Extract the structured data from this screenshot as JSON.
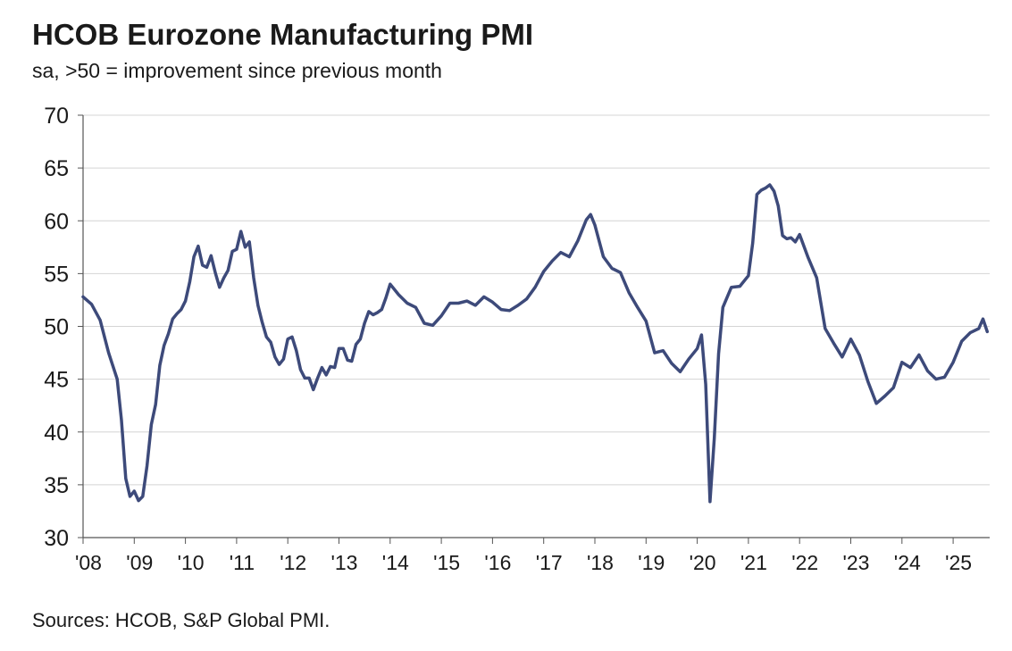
{
  "title": "HCOB Eurozone Manufacturing PMI",
  "subtitle": "sa, >50 = improvement since previous month",
  "source": "Sources: HCOB, S&P Global PMI.",
  "chart_data": {
    "type": "line",
    "title": "HCOB Eurozone Manufacturing PMI",
    "subtitle": "sa, >50 = improvement since previous month",
    "ylim": [
      30,
      70
    ],
    "yticks": [
      30,
      35,
      40,
      45,
      50,
      55,
      60,
      65,
      70
    ],
    "xlim": [
      "2008-01",
      "2025-09"
    ],
    "xtick_labels": [
      "'08",
      "'09",
      "'10",
      "'11",
      "'12",
      "'13",
      "'14",
      "'15",
      "'16",
      "'17",
      "'18",
      "'19",
      "'20",
      "'21",
      "'22",
      "'23",
      "'24",
      "'25"
    ],
    "xtick_years": [
      2008,
      2009,
      2010,
      2011,
      2012,
      2013,
      2014,
      2015,
      2016,
      2017,
      2018,
      2019,
      2020,
      2021,
      2022,
      2023,
      2024,
      2025
    ],
    "grid": "horizontal",
    "line_color": "#3d4a7a",
    "series": [
      {
        "x": [
          "2008-01",
          "2008-03",
          "2008-05",
          "2008-07",
          "2008-09",
          "2008-10",
          "2008-11",
          "2008-12",
          "2009-01",
          "2009-02",
          "2009-03",
          "2009-04",
          "2009-05",
          "2009-06",
          "2009-07",
          "2009-08",
          "2009-09",
          "2009-10",
          "2009-11",
          "2009-12",
          "2010-01",
          "2010-02",
          "2010-03",
          "2010-04",
          "2010-05",
          "2010-06",
          "2010-07",
          "2010-08",
          "2010-09",
          "2010-10",
          "2010-11",
          "2010-12",
          "2011-01",
          "2011-02",
          "2011-03",
          "2011-04",
          "2011-05",
          "2011-06",
          "2011-07",
          "2011-08",
          "2011-09",
          "2011-10",
          "2011-11",
          "2011-12",
          "2012-01",
          "2012-02",
          "2012-03",
          "2012-04",
          "2012-05",
          "2012-06",
          "2012-07",
          "2012-08",
          "2012-09",
          "2012-10",
          "2012-11",
          "2012-12",
          "2013-01",
          "2013-02",
          "2013-03",
          "2013-04",
          "2013-05",
          "2013-06",
          "2013-07",
          "2013-08",
          "2013-09",
          "2013-10",
          "2013-11",
          "2013-12",
          "2014-01",
          "2014-03",
          "2014-05",
          "2014-07",
          "2014-09",
          "2014-11",
          "2015-01",
          "2015-03",
          "2015-05",
          "2015-07",
          "2015-09",
          "2015-11",
          "2016-01",
          "2016-03",
          "2016-05",
          "2016-07",
          "2016-09",
          "2016-11",
          "2017-01",
          "2017-03",
          "2017-05",
          "2017-07",
          "2017-09",
          "2017-11",
          "2017-12",
          "2018-01",
          "2018-03",
          "2018-05",
          "2018-07",
          "2018-09",
          "2018-11",
          "2019-01",
          "2019-03",
          "2019-05",
          "2019-07",
          "2019-09",
          "2019-11",
          "2020-01",
          "2020-02",
          "2020-03",
          "2020-04",
          "2020-05",
          "2020-06",
          "2020-07",
          "2020-09",
          "2020-11",
          "2021-01",
          "2021-02",
          "2021-03",
          "2021-04",
          "2021-05",
          "2021-06",
          "2021-07",
          "2021-08",
          "2021-09",
          "2021-10",
          "2021-11",
          "2021-12",
          "2022-01",
          "2022-03",
          "2022-05",
          "2022-07",
          "2022-09",
          "2022-11",
          "2023-01",
          "2023-03",
          "2023-05",
          "2023-07",
          "2023-09",
          "2023-11",
          "2024-01",
          "2024-03",
          "2024-05",
          "2024-07",
          "2024-09",
          "2024-11",
          "2025-01",
          "2025-03",
          "2025-05",
          "2025-07",
          "2025-08",
          "2025-09"
        ],
        "y": [
          52.8,
          52.1,
          50.6,
          47.5,
          45.0,
          41.1,
          35.6,
          33.9,
          34.4,
          33.5,
          33.9,
          36.8,
          40.7,
          42.6,
          46.3,
          48.2,
          49.3,
          50.7,
          51.2,
          51.6,
          52.4,
          54.2,
          56.6,
          57.6,
          55.8,
          55.6,
          56.7,
          55.1,
          53.7,
          54.6,
          55.3,
          57.1,
          57.3,
          59.0,
          57.5,
          58.0,
          54.6,
          52.0,
          50.4,
          49.0,
          48.5,
          47.1,
          46.4,
          46.9,
          48.8,
          49.0,
          47.7,
          45.9,
          45.1,
          45.1,
          44.0,
          45.1,
          46.1,
          45.4,
          46.2,
          46.1,
          47.9,
          47.9,
          46.8,
          46.7,
          48.3,
          48.8,
          50.3,
          51.4,
          51.1,
          51.3,
          51.6,
          52.7,
          54.0,
          53.0,
          52.2,
          51.8,
          50.3,
          50.1,
          51.0,
          52.2,
          52.2,
          52.4,
          52.0,
          52.8,
          52.3,
          51.6,
          51.5,
          52.0,
          52.6,
          53.7,
          55.2,
          56.2,
          57.0,
          56.6,
          58.1,
          60.1,
          60.6,
          59.6,
          56.6,
          55.5,
          55.1,
          53.2,
          51.8,
          50.5,
          47.5,
          47.7,
          46.5,
          45.7,
          46.9,
          47.9,
          49.2,
          44.5,
          33.4,
          39.4,
          47.4,
          51.8,
          53.7,
          53.8,
          54.8,
          57.9,
          62.5,
          62.9,
          63.1,
          63.4,
          62.8,
          61.4,
          58.6,
          58.3,
          58.4,
          58.0,
          58.7,
          56.5,
          54.6,
          49.8,
          48.4,
          47.1,
          48.8,
          47.3,
          44.8,
          42.7,
          43.4,
          44.2,
          46.6,
          46.1,
          47.3,
          45.8,
          45.0,
          45.2,
          46.6,
          48.6,
          49.4,
          49.8,
          50.7,
          49.5
        ]
      }
    ]
  }
}
